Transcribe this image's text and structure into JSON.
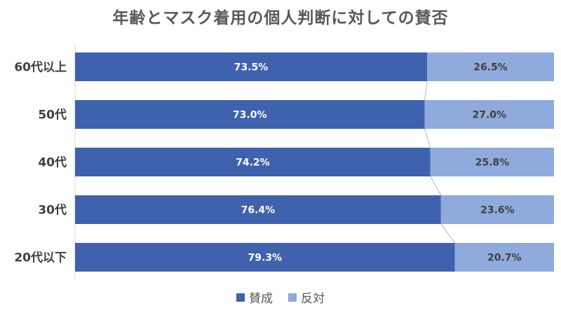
{
  "chart_data": {
    "type": "bar",
    "orientation": "horizontal",
    "stacked": "100%",
    "title": "年齢とマスク着用の個人判断に対しての賛否",
    "categories": [
      "60代以上",
      "50代",
      "40代",
      "30代",
      "20代以下"
    ],
    "series": [
      {
        "name": "賛成",
        "color": "#3e62ad",
        "values": [
          73.5,
          73.0,
          74.2,
          76.4,
          79.3
        ],
        "labels": [
          "73.5%",
          "73.0%",
          "74.2%",
          "76.4%",
          "79.3%"
        ]
      },
      {
        "name": "反対",
        "color": "#8faadc",
        "values": [
          26.5,
          27.0,
          25.8,
          23.6,
          20.7
        ],
        "labels": [
          "26.5%",
          "27.0%",
          "25.8%",
          "23.6%",
          "20.7%"
        ]
      }
    ],
    "xlim": [
      0,
      100
    ],
    "series_lines": true,
    "legend_position": "bottom"
  }
}
